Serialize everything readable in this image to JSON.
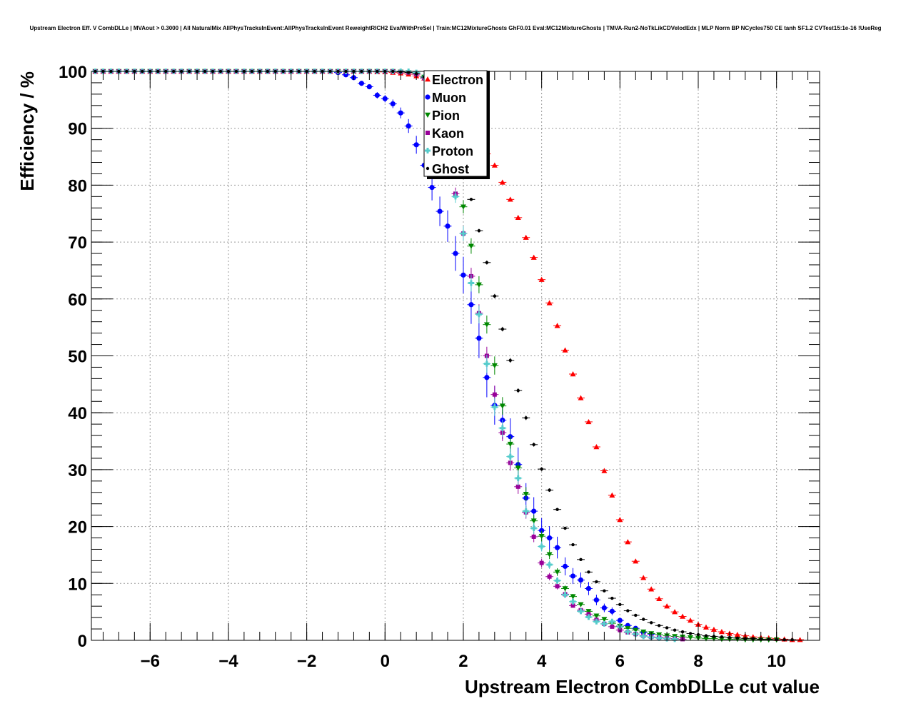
{
  "chart_data": {
    "type": "scatter",
    "title": "Upstream Electron Eff. V CombDLLe | MVAout > 0.3000 | All NaturalMix AllPhysTracksInEvent:AllPhysTracksInEvent ReweightRICH2 EvalWithPreSel | Train:MC12MixtureGhosts GhF0.01 Eval:MC12MixtureGhosts | TMVA-Run2-NoTkLikCDVelodEdx | MLP Norm BP NCycles750 CE tanh SF1.2 CVTest15:1e-16 !UseReg",
    "xlabel": "Upstream Electron CombDLLe cut value",
    "ylabel": "Efficiency / %",
    "xlim": [
      -7.5,
      11.1
    ],
    "ylim": [
      0,
      100
    ],
    "x_ticks": [
      {
        "value": -6,
        "label": "−6"
      },
      {
        "value": -4,
        "label": "−4"
      },
      {
        "value": -2,
        "label": "−2"
      },
      {
        "value": 0,
        "label": "0"
      },
      {
        "value": 2,
        "label": "2"
      },
      {
        "value": 4,
        "label": "4"
      },
      {
        "value": 6,
        "label": "6"
      },
      {
        "value": 8,
        "label": "8"
      },
      {
        "value": 10,
        "label": "10"
      }
    ],
    "y_ticks": [
      {
        "value": 0,
        "label": "0"
      },
      {
        "value": 10,
        "label": "10"
      },
      {
        "value": 20,
        "label": "20"
      },
      {
        "value": 30,
        "label": "30"
      },
      {
        "value": 40,
        "label": "40"
      },
      {
        "value": 50,
        "label": "50"
      },
      {
        "value": 60,
        "label": "60"
      },
      {
        "value": 70,
        "label": "70"
      },
      {
        "value": 80,
        "label": "80"
      },
      {
        "value": 90,
        "label": "90"
      },
      {
        "value": 100,
        "label": "100"
      }
    ],
    "grid": true,
    "legend_position": "top-center",
    "series": [
      {
        "name": "Electron",
        "color": "#ff0000",
        "marker": "triangle-up",
        "x": [
          -7.4,
          -7.2,
          -7.0,
          -6.8,
          -6.6,
          -6.4,
          -6.2,
          -6.0,
          -5.8,
          -5.6,
          -5.4,
          -5.2,
          -5.0,
          -4.8,
          -4.6,
          -4.4,
          -4.2,
          -4.0,
          -3.8,
          -3.6,
          -3.4,
          -3.2,
          -3.0,
          -2.8,
          -2.6,
          -2.4,
          -2.2,
          -2.0,
          -1.8,
          -1.6,
          -1.4,
          -1.2,
          -1.0,
          -0.8,
          -0.6,
          -0.4,
          -0.2,
          0.0,
          0.2,
          0.4,
          0.6,
          0.8,
          1.0,
          1.2,
          1.4,
          1.6,
          1.8,
          2.0,
          2.2,
          2.4,
          2.6,
          2.8,
          3.0,
          3.2,
          3.4,
          3.6,
          3.8,
          4.0,
          4.2,
          4.4,
          4.6,
          4.8,
          5.0,
          5.2,
          5.4,
          5.6,
          5.8,
          6.0,
          6.2,
          6.4,
          6.6,
          6.8,
          7.0,
          7.2,
          7.4,
          7.6,
          7.8,
          8.0,
          8.2,
          8.4,
          8.6,
          8.8,
          9.0,
          9.2,
          9.4,
          9.6,
          9.8,
          10.0,
          10.2,
          10.4,
          10.6
        ],
        "y": [
          100,
          100,
          100,
          100,
          100,
          100,
          100,
          100,
          100,
          100,
          100,
          100,
          100,
          100,
          100,
          100,
          100,
          100,
          100,
          100,
          100,
          100,
          100,
          100,
          100,
          100,
          100,
          100,
          100,
          100,
          100,
          100,
          100,
          100,
          100,
          100,
          99.9,
          99.9,
          99.8,
          99.7,
          99.5,
          99.2,
          98.8,
          98.2,
          97.4,
          96.3,
          94.8,
          93.0,
          90.8,
          88.0,
          85.5,
          83.5,
          80.5,
          77.5,
          74.3,
          70.8,
          67.3,
          63.4,
          59.3,
          55.3,
          51.0,
          46.8,
          42.6,
          38.4,
          34.0,
          29.8,
          25.5,
          21.2,
          17.3,
          13.9,
          11.0,
          9.0,
          7.3,
          6.0,
          5.0,
          4.2,
          3.5,
          2.8,
          2.3,
          1.9,
          1.5,
          1.2,
          1.0,
          0.8,
          0.6,
          0.5,
          0.4,
          0.3,
          0.2,
          0.1,
          0.1
        ]
      },
      {
        "name": "Muon",
        "color": "#0000ff",
        "marker": "circle",
        "x": [
          -7.4,
          -7.2,
          -7.0,
          -6.8,
          -6.6,
          -6.4,
          -6.2,
          -6.0,
          -5.8,
          -5.6,
          -5.4,
          -5.2,
          -5.0,
          -4.8,
          -4.6,
          -4.4,
          -4.2,
          -4.0,
          -3.8,
          -3.6,
          -3.4,
          -3.2,
          -3.0,
          -2.8,
          -2.6,
          -2.4,
          -2.2,
          -2.0,
          -1.8,
          -1.6,
          -1.4,
          -1.2,
          -1.0,
          -0.8,
          -0.6,
          -0.4,
          -0.2,
          0.0,
          0.2,
          0.4,
          0.6,
          0.8,
          1.0,
          1.2,
          1.4,
          1.6,
          1.8,
          2.0,
          2.2,
          2.4,
          2.6,
          2.8,
          3.0,
          3.2,
          3.4,
          3.6,
          3.8,
          4.0,
          4.2,
          4.4,
          4.6,
          4.8,
          5.0,
          5.2,
          5.4,
          5.6,
          5.8,
          6.0,
          6.2,
          6.4,
          6.6,
          6.8,
          7.0
        ],
        "y": [
          100,
          100,
          100,
          100,
          100,
          100,
          100,
          100,
          100,
          100,
          100,
          100,
          100,
          100,
          100,
          100,
          100,
          100,
          100,
          100,
          100,
          100,
          100,
          100,
          100,
          100,
          100,
          100,
          100,
          100,
          100,
          99.8,
          99.4,
          98.9,
          97.9,
          97.3,
          95.8,
          95.2,
          94.3,
          92.7,
          90.4,
          87.1,
          83.5,
          79.6,
          75.4,
          72.8,
          68.0,
          64.2,
          59.0,
          53.1,
          46.2,
          41.3,
          38.7,
          35.8,
          30.9,
          25.0,
          22.7,
          19.3,
          18.0,
          16.3,
          13.0,
          11.3,
          10.6,
          9.1,
          7.1,
          5.7,
          5.1,
          3.5,
          2.6,
          2.1,
          1.4,
          1.1,
          0.5
        ]
      },
      {
        "name": "Pion",
        "color": "#008800",
        "marker": "triangle-down",
        "x": [
          -7.4,
          -7.2,
          -7.0,
          -6.8,
          -6.6,
          -6.4,
          -6.2,
          -6.0,
          -5.8,
          -5.6,
          -5.4,
          -5.2,
          -5.0,
          -4.8,
          -4.6,
          -4.4,
          -4.2,
          -4.0,
          -3.8,
          -3.6,
          -3.4,
          -3.2,
          -3.0,
          -2.8,
          -2.6,
          -2.4,
          -2.2,
          -2.0,
          -1.8,
          -1.6,
          -1.4,
          -1.2,
          -1.0,
          -0.8,
          -0.6,
          -0.4,
          -0.2,
          0.0,
          0.2,
          0.4,
          0.6,
          0.8,
          1.0,
          1.2,
          1.4,
          1.6,
          1.8,
          2.0,
          2.2,
          2.4,
          2.6,
          2.8,
          3.0,
          3.2,
          3.4,
          3.6,
          3.8,
          4.0,
          4.2,
          4.4,
          4.6,
          4.8,
          5.0,
          5.2,
          5.4,
          5.6,
          5.8,
          6.0,
          6.2,
          6.4,
          6.6,
          6.8,
          7.0,
          7.2,
          7.4,
          7.6,
          7.8,
          8.0,
          8.2,
          8.4,
          8.6,
          8.8,
          9.0,
          9.2,
          9.4,
          9.6,
          9.8,
          10.0
        ],
        "y": [
          100,
          100,
          100,
          100,
          100,
          100,
          100,
          100,
          100,
          100,
          100,
          100,
          100,
          100,
          100,
          100,
          100,
          100,
          100,
          100,
          100,
          100,
          100,
          100,
          100,
          100,
          100,
          100,
          100,
          100,
          100,
          100,
          100,
          100,
          100,
          100,
          100,
          100,
          100,
          99.9,
          99.8,
          99.5,
          99.0,
          97.5,
          94.0,
          88.5,
          82.0,
          76.2,
          69.3,
          62.5,
          55.5,
          48.3,
          41.2,
          34.5,
          30.3,
          25.7,
          21.0,
          18.3,
          15.1,
          12.0,
          9.1,
          7.7,
          6.3,
          5.1,
          4.3,
          3.7,
          3.0,
          2.5,
          2.1,
          1.8,
          1.5,
          1.2,
          1.0,
          0.8,
          0.7,
          0.6,
          0.5,
          0.4,
          0.3,
          0.3,
          0.2,
          0.2,
          0.2,
          0.1,
          0.1,
          0.1,
          0.1,
          0.1
        ]
      },
      {
        "name": "Kaon",
        "color": "#990099",
        "marker": "square",
        "x": [
          -7.4,
          -7.2,
          -7.0,
          -6.8,
          -6.6,
          -6.4,
          -6.2,
          -6.0,
          -5.8,
          -5.6,
          -5.4,
          -5.2,
          -5.0,
          -4.8,
          -4.6,
          -4.4,
          -4.2,
          -4.0,
          -3.8,
          -3.6,
          -3.4,
          -3.2,
          -3.0,
          -2.8,
          -2.6,
          -2.4,
          -2.2,
          -2.0,
          -1.8,
          -1.6,
          -1.4,
          -1.2,
          -1.0,
          -0.8,
          -0.6,
          -0.4,
          -0.2,
          0.0,
          0.2,
          0.4,
          0.6,
          0.8,
          1.0,
          1.2,
          1.4,
          1.6,
          1.8,
          2.0,
          2.2,
          2.4,
          2.6,
          2.8,
          3.0,
          3.2,
          3.4,
          3.6,
          3.8,
          4.0,
          4.2,
          4.4,
          4.6,
          4.8,
          5.0,
          5.2,
          5.4,
          5.6,
          5.8,
          6.0,
          6.2,
          6.4,
          6.6,
          6.8,
          7.0,
          7.2,
          7.4,
          7.6
        ],
        "y": [
          100,
          100,
          100,
          100,
          100,
          100,
          100,
          100,
          100,
          100,
          100,
          100,
          100,
          100,
          100,
          100,
          100,
          100,
          100,
          100,
          100,
          100,
          100,
          100,
          100,
          100,
          100,
          100,
          100,
          100,
          100,
          100,
          100,
          100,
          100,
          100,
          100,
          100,
          100,
          99.9,
          99.8,
          99.5,
          98.8,
          96.5,
          92.0,
          86.0,
          78.5,
          71.5,
          64.0,
          57.5,
          50.0,
          43.2,
          36.5,
          31.2,
          27.0,
          22.5,
          18.2,
          13.6,
          11.2,
          9.5,
          8.1,
          6.1,
          5.3,
          4.6,
          3.6,
          2.9,
          2.4,
          1.8,
          1.4,
          1.1,
          0.8,
          0.6,
          0.5,
          0.4,
          0.3,
          0.2
        ]
      },
      {
        "name": "Proton",
        "color": "#55cccc",
        "marker": "cross",
        "x": [
          -7.4,
          -7.2,
          -7.0,
          -6.8,
          -6.6,
          -6.4,
          -6.2,
          -6.0,
          -5.8,
          -5.6,
          -5.4,
          -5.2,
          -5.0,
          -4.8,
          -4.6,
          -4.4,
          -4.2,
          -4.0,
          -3.8,
          -3.6,
          -3.4,
          -3.2,
          -3.0,
          -2.8,
          -2.6,
          -2.4,
          -2.2,
          -2.0,
          -1.8,
          -1.6,
          -1.4,
          -1.2,
          -1.0,
          -0.8,
          -0.6,
          -0.4,
          -0.2,
          0.0,
          0.2,
          0.4,
          0.6,
          0.8,
          1.0,
          1.2,
          1.4,
          1.6,
          1.8,
          2.0,
          2.2,
          2.4,
          2.6,
          2.8,
          3.0,
          3.2,
          3.4,
          3.6,
          3.8,
          4.0,
          4.2,
          4.4,
          4.6,
          4.8,
          5.0,
          5.2,
          5.4,
          5.6,
          5.8,
          6.0,
          6.2,
          6.4,
          6.6,
          6.8,
          7.0,
          7.2,
          7.4
        ],
        "y": [
          100,
          100,
          100,
          100,
          100,
          100,
          100,
          100,
          100,
          100,
          100,
          100,
          100,
          100,
          100,
          100,
          100,
          100,
          100,
          100,
          100,
          100,
          100,
          100,
          100,
          100,
          100,
          100,
          100,
          100,
          100,
          100,
          100,
          100,
          100,
          100,
          100,
          100,
          100,
          100,
          100,
          99.8,
          99.0,
          96.0,
          91.0,
          85.0,
          78.0,
          71.5,
          62.8,
          57.3,
          48.6,
          41.0,
          37.3,
          32.3,
          28.5,
          22.7,
          19.7,
          16.5,
          13.3,
          10.5,
          8.0,
          6.8,
          5.1,
          4.1,
          3.3,
          2.9,
          3.3,
          2.4,
          1.5,
          1.1,
          0.7,
          0.5,
          0.4,
          0.3,
          0.2
        ]
      },
      {
        "name": "Ghost",
        "color": "#000000",
        "marker": "dot",
        "x": [
          -7.4,
          -7.2,
          -7.0,
          -6.8,
          -6.6,
          -6.4,
          -6.2,
          -6.0,
          -5.8,
          -5.6,
          -5.4,
          -5.2,
          -5.0,
          -4.8,
          -4.6,
          -4.4,
          -4.2,
          -4.0,
          -3.8,
          -3.6,
          -3.4,
          -3.2,
          -3.0,
          -2.8,
          -2.6,
          -2.4,
          -2.2,
          -2.0,
          -1.8,
          -1.6,
          -1.4,
          -1.2,
          -1.0,
          -0.8,
          -0.6,
          -0.4,
          -0.2,
          0.0,
          0.2,
          0.4,
          0.6,
          0.8,
          1.0,
          1.2,
          1.4,
          1.6,
          1.8,
          2.0,
          2.2,
          2.4,
          2.6,
          2.8,
          3.0,
          3.2,
          3.4,
          3.6,
          3.8,
          4.0,
          4.2,
          4.4,
          4.6,
          4.8,
          5.0,
          5.2,
          5.4,
          5.6,
          5.8,
          6.0,
          6.2,
          6.4,
          6.6,
          6.8,
          7.0,
          7.2,
          7.4,
          7.6,
          7.8,
          8.0,
          8.2,
          8.4,
          8.6,
          8.8,
          9.0,
          9.2,
          9.4,
          9.6,
          9.8,
          10.0,
          10.2,
          10.4
        ],
        "y": [
          100,
          100,
          100,
          100,
          100,
          100,
          100,
          100,
          100,
          100,
          100,
          100,
          100,
          100,
          100,
          100,
          100,
          100,
          100,
          100,
          100,
          100,
          100,
          100,
          100,
          100,
          100,
          100,
          100,
          100,
          100,
          100,
          100,
          100,
          100,
          100,
          100,
          100,
          100,
          99.9,
          99.8,
          99.6,
          99.0,
          97.5,
          94.5,
          90.5,
          86.0,
          81.5,
          77.5,
          72.0,
          66.4,
          60.5,
          54.7,
          49.2,
          43.9,
          39.1,
          34.4,
          30.1,
          26.4,
          23.0,
          19.7,
          16.8,
          14.2,
          12.0,
          10.3,
          8.7,
          7.4,
          6.3,
          5.2,
          4.4,
          3.7,
          3.1,
          2.6,
          2.2,
          1.8,
          1.5,
          1.2,
          1.0,
          0.8,
          0.7,
          0.6,
          0.5,
          0.4,
          0.3,
          0.3,
          0.2,
          0.2,
          0.1,
          0.1,
          0.1
        ]
      }
    ]
  }
}
